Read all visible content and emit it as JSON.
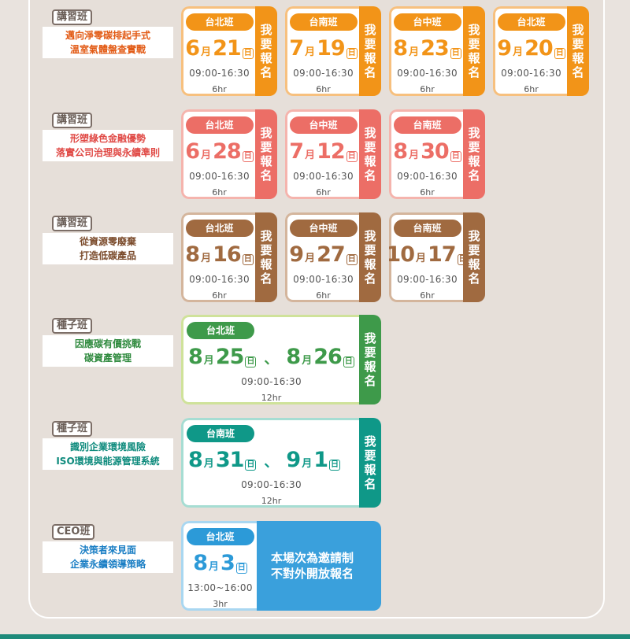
{
  "signup_label": "我要報名",
  "groups": [
    {
      "tag": "講習班",
      "title": [
        "邁向淨零碳排起手式",
        "溫室氣體盤查實戰"
      ],
      "color": "#f29418",
      "title_color": "#e25a14",
      "border": "#f7c07e",
      "sessions": [
        {
          "city": "台北班",
          "month": "6",
          "day": "21",
          "time": "09:00-16:30",
          "hours": "6hr"
        },
        {
          "city": "台南班",
          "month": "7",
          "day": "19",
          "time": "09:00-16:30",
          "hours": "6hr"
        },
        {
          "city": "台中班",
          "month": "8",
          "day": "23",
          "time": "09:00-16:30",
          "hours": "6hr"
        },
        {
          "city": "台北班",
          "month": "9",
          "day": "20",
          "time": "09:00-16:30",
          "hours": "6hr"
        }
      ]
    },
    {
      "tag": "講習班",
      "title": [
        "形塑綠色金融優勢",
        "落實公司治理與永續準則"
      ],
      "color": "#ec6e66",
      "title_color": "#e04a46",
      "border": "#f5b4ad",
      "sessions": [
        {
          "city": "台北班",
          "month": "6",
          "day": "28",
          "time": "09:00-16:30",
          "hours": "6hr"
        },
        {
          "city": "台中班",
          "month": "7",
          "day": "12",
          "time": "09:00-16:30",
          "hours": "6hr"
        },
        {
          "city": "台南班",
          "month": "8",
          "day": "30",
          "time": "09:00-16:30",
          "hours": "6hr"
        }
      ]
    },
    {
      "tag": "講習班",
      "title": [
        "從資源零廢棄",
        "打造低碳產品"
      ],
      "color": "#a06a40",
      "title_color": "#7a4a2a",
      "border": "#d4b59c",
      "sessions": [
        {
          "city": "台北班",
          "month": "8",
          "day": "16",
          "time": "09:00-16:30",
          "hours": "6hr"
        },
        {
          "city": "台中班",
          "month": "9",
          "day": "27",
          "time": "09:00-16:30",
          "hours": "6hr"
        },
        {
          "city": "台南班",
          "month": "10",
          "day": "17",
          "time": "09:00-16:30",
          "hours": "6hr"
        }
      ]
    },
    {
      "tag": "種子班",
      "title": [
        "因應碳有價挑戰",
        "碳資產管理"
      ],
      "color": "#3e9a4a",
      "title_color": "#2f8a3e",
      "border": "#cfe29a",
      "session": {
        "city": "台北班",
        "month": "8",
        "day": "25",
        "month2": "8",
        "day2": "26",
        "sep": "、",
        "time": "09:00-16:30",
        "hours": "12hr"
      }
    },
    {
      "tag": "種子班",
      "title": [
        "識別企業環境風險",
        "ISO環境與能源管理系統"
      ],
      "color": "#0f9888",
      "title_color": "#0d8a7c",
      "border": "#a6ddd3",
      "session": {
        "city": "台南班",
        "month": "8",
        "day": "31",
        "month2": "9",
        "day2": "1",
        "sep": "、",
        "time": "09:00-16:30",
        "hours": "12hr"
      }
    },
    {
      "tag": "CEO班",
      "title": [
        "決策者來見面",
        "企業永續領導策略"
      ],
      "color": "#2c9ad8",
      "title_color": "#1a7ec4",
      "border": "#a9d7f1",
      "session": {
        "city": "台北班",
        "month": "8",
        "day": "3",
        "time": "13:00~16:00",
        "hours": "3hr"
      },
      "invite": [
        "本場次為邀請制",
        "不對外開放報名"
      ]
    }
  ],
  "units": {
    "month": "月",
    "day": "日"
  }
}
